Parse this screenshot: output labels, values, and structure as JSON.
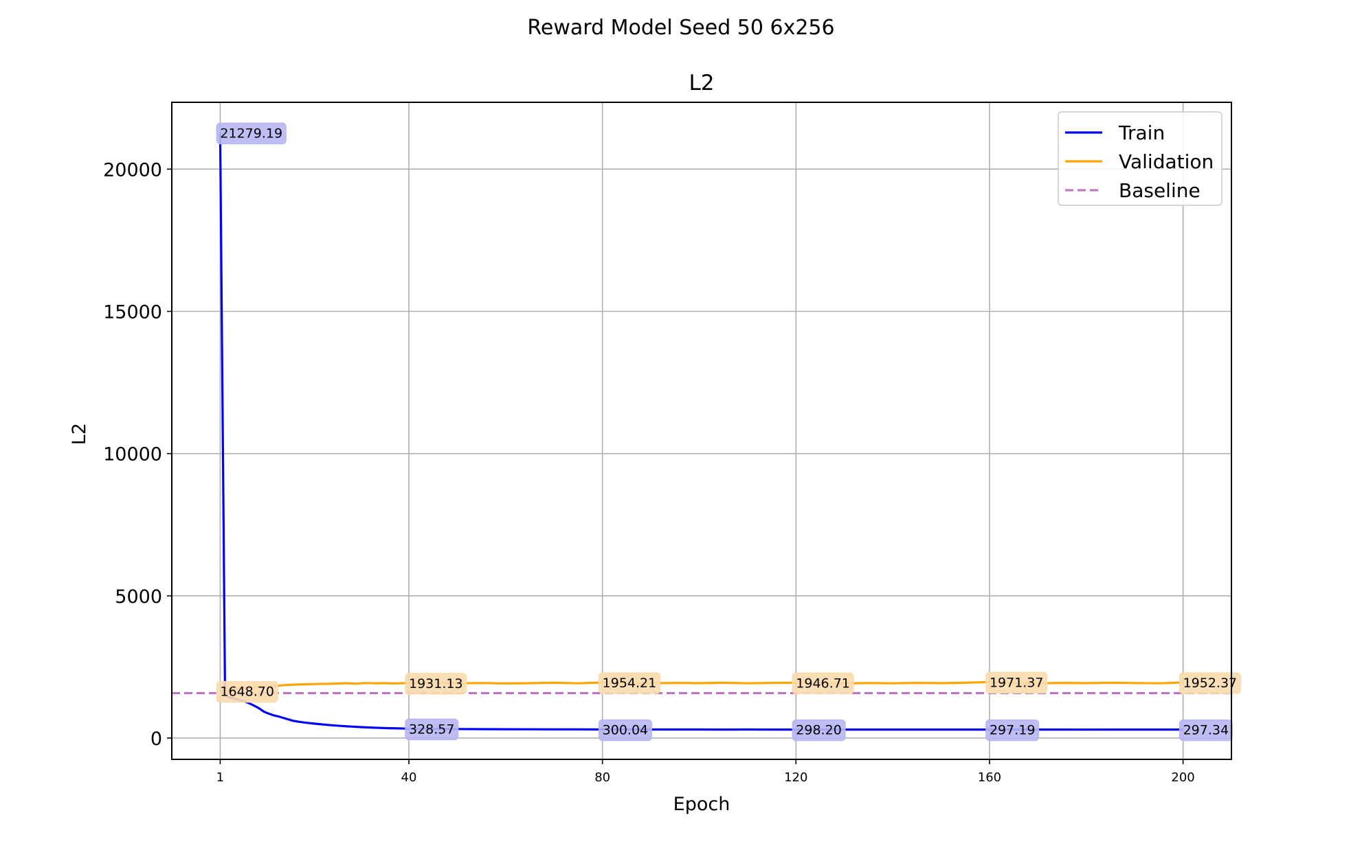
{
  "figure": {
    "suptitle": "Reward Model Seed 50 6x256"
  },
  "chart_data": {
    "type": "line",
    "title": "L2",
    "xlabel": "Epoch",
    "ylabel": "L2",
    "xlim": [
      -9,
      210
    ],
    "ylim": [
      -750,
      22350
    ],
    "xticks": [
      1,
      40,
      80,
      120,
      160,
      200
    ],
    "yticks": [
      0,
      5000,
      10000,
      15000,
      20000
    ],
    "grid": true,
    "legend_position": "top-right",
    "series": [
      {
        "name": "Train",
        "color": "#0000ff",
        "style": "solid",
        "points": [
          [
            1,
            21279.19
          ],
          [
            2,
            1500
          ],
          [
            3,
            1420
          ],
          [
            4,
            1380
          ],
          [
            5,
            1340
          ],
          [
            6,
            1290
          ],
          [
            7,
            1220
          ],
          [
            8,
            1140
          ],
          [
            9,
            1050
          ],
          [
            10,
            930
          ],
          [
            11,
            860
          ],
          [
            12,
            800
          ],
          [
            13,
            760
          ],
          [
            14,
            710
          ],
          [
            15,
            660
          ],
          [
            16,
            610
          ],
          [
            17,
            580
          ],
          [
            18,
            555
          ],
          [
            19,
            535
          ],
          [
            20,
            515
          ],
          [
            22,
            480
          ],
          [
            24,
            450
          ],
          [
            26,
            425
          ],
          [
            28,
            405
          ],
          [
            30,
            385
          ],
          [
            32,
            370
          ],
          [
            34,
            355
          ],
          [
            36,
            345
          ],
          [
            38,
            338
          ],
          [
            40,
            328.57
          ],
          [
            45,
            322
          ],
          [
            50,
            316
          ],
          [
            55,
            312
          ],
          [
            60,
            310
          ],
          [
            65,
            308
          ],
          [
            70,
            306
          ],
          [
            75,
            304
          ],
          [
            80,
            300.04
          ],
          [
            85,
            302
          ],
          [
            90,
            300
          ],
          [
            95,
            299
          ],
          [
            100,
            299
          ],
          [
            105,
            298
          ],
          [
            110,
            299
          ],
          [
            115,
            298
          ],
          [
            120,
            298.2
          ],
          [
            125,
            298
          ],
          [
            130,
            298
          ],
          [
            135,
            297
          ],
          [
            140,
            297
          ],
          [
            145,
            297
          ],
          [
            150,
            297
          ],
          [
            155,
            297
          ],
          [
            160,
            297.19
          ],
          [
            165,
            297
          ],
          [
            170,
            297
          ],
          [
            175,
            297
          ],
          [
            180,
            296
          ],
          [
            185,
            297
          ],
          [
            190,
            297
          ],
          [
            195,
            297
          ],
          [
            200,
            297.34
          ]
        ]
      },
      {
        "name": "Validation",
        "color": "#ffa500",
        "style": "solid",
        "points": [
          [
            1,
            1648.7
          ],
          [
            3,
            1700
          ],
          [
            5,
            1760
          ],
          [
            7,
            1780
          ],
          [
            9,
            1800
          ],
          [
            11,
            1820
          ],
          [
            13,
            1840
          ],
          [
            15,
            1870
          ],
          [
            17,
            1880
          ],
          [
            19,
            1890
          ],
          [
            21,
            1900
          ],
          [
            23,
            1905
          ],
          [
            25,
            1915
          ],
          [
            27,
            1930
          ],
          [
            29,
            1910
          ],
          [
            31,
            1935
          ],
          [
            33,
            1925
          ],
          [
            35,
            1930
          ],
          [
            37,
            1920
          ],
          [
            40,
            1931.13
          ],
          [
            45,
            1940
          ],
          [
            50,
            1925
          ],
          [
            55,
            1935
          ],
          [
            60,
            1920
          ],
          [
            65,
            1930
          ],
          [
            70,
            1945
          ],
          [
            75,
            1925
          ],
          [
            80,
            1954.21
          ],
          [
            85,
            1935
          ],
          [
            90,
            1925
          ],
          [
            95,
            1940
          ],
          [
            100,
            1930
          ],
          [
            105,
            1945
          ],
          [
            110,
            1925
          ],
          [
            115,
            1940
          ],
          [
            120,
            1946.71
          ],
          [
            125,
            1930
          ],
          [
            130,
            1920
          ],
          [
            135,
            1935
          ],
          [
            140,
            1925
          ],
          [
            145,
            1940
          ],
          [
            150,
            1930
          ],
          [
            155,
            1945
          ],
          [
            160,
            1971.37
          ],
          [
            165,
            1935
          ],
          [
            170,
            1925
          ],
          [
            175,
            1940
          ],
          [
            180,
            1930
          ],
          [
            185,
            1945
          ],
          [
            190,
            1935
          ],
          [
            195,
            1925
          ],
          [
            200,
            1952.37
          ]
        ]
      },
      {
        "name": "Baseline",
        "color": "#bf77bf",
        "style": "dashed",
        "points": [
          [
            -9,
            1580
          ],
          [
            210,
            1580
          ]
        ]
      }
    ],
    "annotations": [
      {
        "x": 1,
        "y": 21279.19,
        "text": "21279.19",
        "series": "Train"
      },
      {
        "x": 40,
        "y": 328.57,
        "text": "328.57",
        "series": "Train"
      },
      {
        "x": 80,
        "y": 300.04,
        "text": "300.04",
        "series": "Train"
      },
      {
        "x": 120,
        "y": 298.2,
        "text": "298.20",
        "series": "Train"
      },
      {
        "x": 160,
        "y": 297.19,
        "text": "297.19",
        "series": "Train"
      },
      {
        "x": 200,
        "y": 297.34,
        "text": "297.34",
        "series": "Train"
      },
      {
        "x": 1,
        "y": 1648.7,
        "text": "1648.70",
        "series": "Validation"
      },
      {
        "x": 40,
        "y": 1931.13,
        "text": "1931.13",
        "series": "Validation"
      },
      {
        "x": 80,
        "y": 1954.21,
        "text": "1954.21",
        "series": "Validation"
      },
      {
        "x": 120,
        "y": 1946.71,
        "text": "1946.71",
        "series": "Validation"
      },
      {
        "x": 160,
        "y": 1971.37,
        "text": "1971.37",
        "series": "Validation"
      },
      {
        "x": 200,
        "y": 1952.37,
        "text": "1952.37",
        "series": "Validation"
      }
    ],
    "annotation_colors": {
      "Train": "#b7b7f3",
      "Validation": "#f9dcae"
    }
  }
}
